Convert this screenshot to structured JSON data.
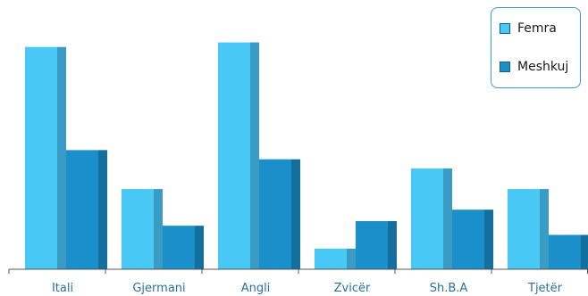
{
  "chart_data": {
    "type": "bar",
    "categories": [
      "Itali",
      "Gjermani",
      "Angli",
      "Zvicër",
      "Sh.B.A",
      "Tjetër"
    ],
    "series": [
      {
        "name": "Femra",
        "values": [
          97,
          35,
          99,
          9,
          44,
          35
        ],
        "color": "#47c8f5",
        "side_color": "#3a9bc4"
      },
      {
        "name": "Meshkuj",
        "values": [
          52,
          19,
          48,
          21,
          26,
          15
        ],
        "color": "#1a8fc9",
        "side_color": "#126f9e"
      }
    ],
    "ylim": [
      0,
      100
    ],
    "grid": false,
    "legend_position": "top-right",
    "title": "",
    "xlabel": "",
    "ylabel": ""
  }
}
